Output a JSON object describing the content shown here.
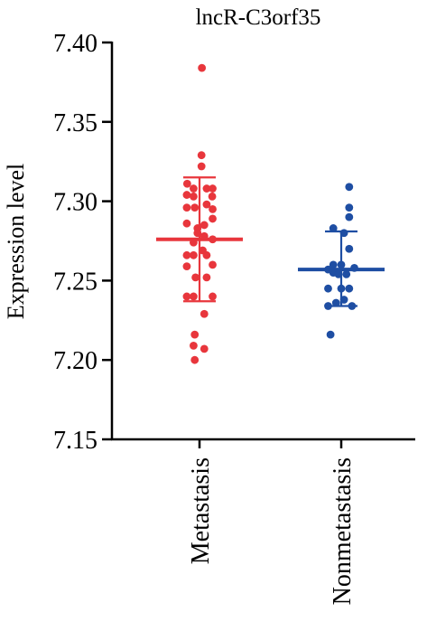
{
  "chart_data": {
    "type": "scatter",
    "title": "lncR-C3orf35",
    "xlabel": "",
    "ylabel": "Expression level",
    "ylim": [
      7.15,
      7.4
    ],
    "yticks": [
      "7.40",
      "7.35",
      "7.30",
      "7.25",
      "7.20",
      "7.15"
    ],
    "yticks_values": [
      7.4,
      7.35,
      7.3,
      7.25,
      7.2,
      7.15
    ],
    "categories": [
      "Metastasis",
      "Nonmetastasis"
    ],
    "series": [
      {
        "name": "Metastasis",
        "color": "#e8363c",
        "mean": 7.276,
        "sd_upper": 7.315,
        "sd_lower": 7.237,
        "points": [
          {
            "dx": 0.06,
            "y": 7.384
          },
          {
            "dx": 0.05,
            "y": 7.329
          },
          {
            "dx": 0.05,
            "y": 7.322
          },
          {
            "dx": -0.31,
            "y": 7.311
          },
          {
            "dx": -0.15,
            "y": 7.308
          },
          {
            "dx": 0.18,
            "y": 7.308
          },
          {
            "dx": 0.33,
            "y": 7.308
          },
          {
            "dx": -0.32,
            "y": 7.304
          },
          {
            "dx": -0.15,
            "y": 7.303
          },
          {
            "dx": 0.32,
            "y": 7.303
          },
          {
            "dx": -0.32,
            "y": 7.296
          },
          {
            "dx": -0.12,
            "y": 7.296
          },
          {
            "dx": 0.18,
            "y": 7.298
          },
          {
            "dx": 0.33,
            "y": 7.295
          },
          {
            "dx": 0.33,
            "y": 7.289
          },
          {
            "dx": -0.32,
            "y": 7.286
          },
          {
            "dx": -0.05,
            "y": 7.283
          },
          {
            "dx": 0.12,
            "y": 7.285
          },
          {
            "dx": -0.05,
            "y": 7.28
          },
          {
            "dx": 0.12,
            "y": 7.278
          },
          {
            "dx": 0.33,
            "y": 7.276
          },
          {
            "dx": -0.15,
            "y": 7.274
          },
          {
            "dx": 0.08,
            "y": 7.269
          },
          {
            "dx": -0.32,
            "y": 7.266
          },
          {
            "dx": -0.15,
            "y": 7.266
          },
          {
            "dx": 0.18,
            "y": 7.266
          },
          {
            "dx": 0.33,
            "y": 7.26
          },
          {
            "dx": -0.32,
            "y": 7.259
          },
          {
            "dx": -0.1,
            "y": 7.252
          },
          {
            "dx": 0.18,
            "y": 7.252
          },
          {
            "dx": -0.32,
            "y": 7.24
          },
          {
            "dx": -0.15,
            "y": 7.24
          },
          {
            "dx": 0.33,
            "y": 7.24
          },
          {
            "dx": 0.12,
            "y": 7.229
          },
          {
            "dx": -0.12,
            "y": 7.216
          },
          {
            "dx": -0.15,
            "y": 7.209
          },
          {
            "dx": 0.12,
            "y": 7.207
          },
          {
            "dx": -0.12,
            "y": 7.2
          }
        ]
      },
      {
        "name": "Nonmetastasis",
        "color": "#1e4ea3",
        "mean": 7.257,
        "sd_upper": 7.281,
        "sd_lower": 7.234,
        "points": [
          {
            "dx": 0.2,
            "y": 7.309
          },
          {
            "dx": 0.2,
            "y": 7.296
          },
          {
            "dx": 0.2,
            "y": 7.29
          },
          {
            "dx": -0.2,
            "y": 7.283
          },
          {
            "dx": 0.07,
            "y": 7.28
          },
          {
            "dx": 0.2,
            "y": 7.27
          },
          {
            "dx": -0.2,
            "y": 7.26
          },
          {
            "dx": 0.0,
            "y": 7.26
          },
          {
            "dx": 0.33,
            "y": 7.258
          },
          {
            "dx": -0.2,
            "y": 7.255
          },
          {
            "dx": -0.07,
            "y": 7.254
          },
          {
            "dx": 0.13,
            "y": 7.254
          },
          {
            "dx": -0.33,
            "y": 7.257
          },
          {
            "dx": -0.33,
            "y": 7.245
          },
          {
            "dx": 0.0,
            "y": 7.245
          },
          {
            "dx": 0.2,
            "y": 7.245
          },
          {
            "dx": -0.13,
            "y": 7.236
          },
          {
            "dx": 0.07,
            "y": 7.238
          },
          {
            "dx": -0.33,
            "y": 7.234
          },
          {
            "dx": 0.27,
            "y": 7.234
          },
          {
            "dx": -0.27,
            "y": 7.216
          }
        ]
      }
    ],
    "grid": false,
    "legend": "none"
  }
}
